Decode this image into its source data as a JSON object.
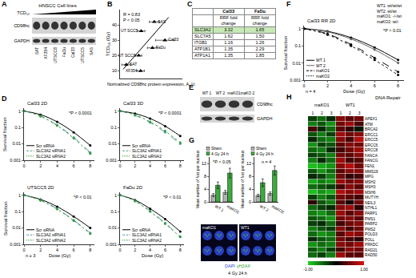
{
  "panel_letters": [
    "A",
    "B",
    "C",
    "D",
    "E",
    "F",
    "G",
    "H"
  ],
  "blot_A": {
    "title": "HNSCC Cell lines",
    "gradient_label": "TCD₅₀",
    "bands": [
      "CD98hc",
      "GAPDH"
    ],
    "lanes": [
      "SAT",
      "XF354",
      "UTSCC8",
      "FaDu",
      "Cal33",
      "UTSCC5",
      "SAS"
    ]
  },
  "table_C": {
    "header": [
      "",
      "Cal33",
      "FaDu"
    ],
    "subheader": [
      "",
      "RRF fold change",
      "RRF fold change"
    ],
    "rows": [
      [
        "SLC3A2",
        "3.32",
        "1.65"
      ],
      [
        "SLC7A5",
        "1.62",
        "1.50"
      ],
      [
        "ITGB1",
        "1.16",
        "1.26"
      ],
      [
        "ATP1B1",
        "1.35",
        "2.29"
      ],
      [
        "ATP1A1",
        "1.35",
        "1.85"
      ]
    ]
  },
  "blot_E": {
    "bands": [
      "CD98hc",
      "GAPDH"
    ],
    "lanes": [
      "WT 1",
      "WT 2",
      "maKO1",
      "maKO 2"
    ]
  },
  "image_G": {
    "panels": [
      "maKO1",
      "WT1"
    ],
    "caption": [
      "DAPI",
      "γH2AX"
    ],
    "subcaption": "4 Gy 24 h"
  },
  "chart_data": [
    {
      "type": "scatter",
      "xlabel": "Normalized CD98hc protein expression, A. U.",
      "ylabel": "TCD₅₀ (Gy)",
      "x": [
        0.55,
        0.34,
        0.72,
        0.52,
        0.3,
        0.1,
        0.33
      ],
      "values": [
        42,
        36,
        30,
        25,
        20,
        14,
        10
      ],
      "point_labels": [
        "SAS",
        "UT SCC5",
        "Cal33",
        "FaDu",
        "UT SCC8",
        "SAT",
        "XF354"
      ],
      "x_error": [
        0.08,
        0.06,
        0.15,
        0.08,
        0.05,
        0.07,
        0.06
      ],
      "marker": "triangle",
      "color": "#000000",
      "fit": {
        "x": [
          0.05,
          0.78
        ],
        "values": [
          11,
          45
        ]
      },
      "xlim": [
        0,
        1
      ],
      "ylim": [
        5,
        50
      ],
      "yticks": [
        10,
        20,
        30,
        40
      ],
      "tick_labels": "y",
      "notes": [
        "R = 0.83",
        "P < 0.05"
      ]
    },
    {
      "type": "line",
      "title": "Cal33 2D",
      "ylabel": "Survival fraction",
      "x": [
        0,
        2,
        4,
        6,
        8
      ],
      "series": [
        {
          "name": "Scr siRNA",
          "color": "#000000",
          "line_style": "solid",
          "marker": "circle",
          "values": [
            1,
            0.6,
            0.22,
            0.05,
            0.008
          ]
        },
        {
          "name": "SLC3A2 siRNA1",
          "color": "#5b9e9e",
          "line_style": "dash",
          "marker": "circle",
          "values": [
            1,
            0.5,
            0.14,
            0.025,
            0.003
          ]
        },
        {
          "name": "SLC3A2 siRNA2",
          "color": "#2e9a3a",
          "line_style": "dot",
          "marker": "circle",
          "values": [
            1,
            0.48,
            0.13,
            0.022,
            0.0025
          ]
        }
      ],
      "log": "y",
      "xlim": [
        0,
        8.5
      ],
      "xticks": [
        0,
        2,
        4,
        6,
        8
      ],
      "ylim": [
        0.001,
        1.5
      ],
      "yticks": [
        0.001,
        0.01,
        0.1,
        1
      ],
      "legend": "lower left",
      "notes": [
        "*P < 0.0001"
      ]
    },
    {
      "type": "line",
      "title": "Cal33 3D",
      "x": [
        0,
        2,
        4,
        6,
        8
      ],
      "series": [
        {
          "name": "Scr siRNA",
          "color": "#000000",
          "line_style": "solid",
          "marker": "circle",
          "values": [
            1,
            0.7,
            0.35,
            0.12,
            0.03
          ]
        },
        {
          "name": "SLC3A2 siRNA1",
          "color": "#5b9e9e",
          "line_style": "dash",
          "marker": "circle",
          "values": [
            1,
            0.55,
            0.2,
            0.05,
            0.01
          ]
        },
        {
          "name": "SLC3A2 siRNA2",
          "color": "#2e9a3a",
          "line_style": "dot",
          "marker": "circle",
          "values": [
            1,
            0.58,
            0.22,
            0.06,
            0.012
          ]
        }
      ],
      "log": "y",
      "xlim": [
        0,
        8.5
      ],
      "xticks": [
        0,
        2,
        4,
        6,
        8
      ],
      "ylim": [
        0.001,
        1.5
      ],
      "yticks": [
        0.001,
        0.01,
        0.1,
        1
      ],
      "legend": "lower left",
      "notes": [
        "*P < 0.0001"
      ]
    },
    {
      "type": "line",
      "title": "UTSCC5 2D",
      "xlabel": "Dose (Gy)",
      "ylabel": "Survival fraction",
      "x": [
        0,
        2,
        4,
        6,
        8
      ],
      "series": [
        {
          "name": "Scr siRNA",
          "color": "#000000",
          "line_style": "solid",
          "marker": "circle",
          "values": [
            1,
            0.55,
            0.2,
            0.05,
            0.01
          ]
        },
        {
          "name": "SLC3A2 siRNA1",
          "color": "#5b9e9e",
          "line_style": "dash",
          "marker": "circle",
          "values": [
            1,
            0.5,
            0.15,
            0.03,
            0.005
          ]
        },
        {
          "name": "SLC3A2 siRNA2",
          "color": "#2e9a3a",
          "line_style": "dot",
          "marker": "circle",
          "values": [
            1,
            0.48,
            0.14,
            0.028,
            0.0045
          ]
        }
      ],
      "log": "y",
      "xlim": [
        0,
        8.5
      ],
      "xticks": [
        0,
        2,
        4,
        6,
        8
      ],
      "ylim": [
        0.001,
        1.5
      ],
      "yticks": [
        0.001,
        0.01,
        0.1,
        1
      ],
      "legend": "lower left",
      "notes": [
        "*P < 0.01"
      ],
      "sample_size": "n ≥ 3"
    },
    {
      "type": "line",
      "title": "FaDu 2D",
      "xlabel": "Dose (Gy)",
      "x": [
        0,
        2,
        4,
        6,
        8
      ],
      "series": [
        {
          "name": "Scr siRNA",
          "color": "#000000",
          "line_style": "solid",
          "marker": "circle",
          "values": [
            1,
            0.5,
            0.15,
            0.035,
            0.006
          ]
        },
        {
          "name": "SLC3A2 siRNA1",
          "color": "#5b9e9e",
          "line_style": "dash",
          "marker": "circle",
          "values": [
            1,
            0.45,
            0.11,
            0.02,
            0.003
          ]
        },
        {
          "name": "SLC3A2 siRNA2",
          "color": "#2e9a3a",
          "line_style": "dot",
          "marker": "circle",
          "values": [
            1,
            0.44,
            0.1,
            0.018,
            0.0028
          ]
        }
      ],
      "log": "y",
      "xlim": [
        0,
        8.5
      ],
      "xticks": [
        0,
        2,
        4,
        6,
        8
      ],
      "ylim": [
        0.001,
        1.5
      ],
      "yticks": [
        0.001,
        0.01,
        0.1,
        1
      ],
      "legend": "lower left",
      "notes": [
        "*P < 0.01"
      ]
    },
    {
      "type": "line",
      "title": "Cal33 RR 2D",
      "xlabel": "Dose (Gy)",
      "ylabel": "Survival fraction",
      "x": [
        0,
        2,
        4,
        6,
        8
      ],
      "series": [
        {
          "name": "WT 1",
          "color": "#000000",
          "line_style": "solid",
          "marker": "circle",
          "values": [
            1,
            0.7,
            0.3,
            0.08,
            0.015
          ]
        },
        {
          "name": "WT 2",
          "color": "#666666",
          "line_style": "solid",
          "marker": "circle",
          "values": [
            1,
            0.65,
            0.25,
            0.06,
            0.01
          ]
        },
        {
          "name": "maKO1",
          "color": "#000000",
          "line_style": "dash",
          "marker": "circle",
          "values": [
            1,
            0.5,
            0.12,
            0.02,
            0.003
          ]
        },
        {
          "name": "maKO2",
          "color": "#000000",
          "line_style": "dot",
          "marker": "circle",
          "values": [
            1,
            0.45,
            0.1,
            0.015,
            0.002
          ]
        }
      ],
      "log": "y",
      "xlim": [
        0,
        8.5
      ],
      "xticks": [
        0,
        2,
        4,
        6,
        8
      ],
      "ylim": [
        0.001,
        1.5
      ],
      "yticks": [
        0.001,
        0.01,
        0.1,
        1
      ],
      "legend": "lower left",
      "notes": [
        "*P < 0.01"
      ],
      "sample_size": "n = 4",
      "genotypes": [
        "WT1: wt/wt/wt",
        "WT2: wt/wt",
        "maKO1: -/-/wt",
        "maKO2: wt/-"
      ]
    },
    {
      "type": "bar",
      "ylabel": "Mean number of foci per nucleus",
      "categories": [
        "WT 1",
        "maKO1"
      ],
      "series": [
        {
          "name": "Sham",
          "color": "#b3b3b3",
          "values": [
            2.1,
            3.0
          ],
          "errors": [
            0.5,
            0.6
          ]
        },
        {
          "name": "4 Gy 24 h",
          "color": "#3daa3d",
          "values": [
            5.2,
            9.0
          ],
          "errors": [
            1.0,
            1.5
          ]
        }
      ],
      "ylim": [
        0,
        14
      ],
      "yticks": [
        0,
        4,
        8,
        12
      ],
      "legend": "above",
      "notes": [
        "*P < 0.05"
      ]
    },
    {
      "type": "bar",
      "ylabel": "Mean number of foci per nucleus",
      "categories": [
        "WT 2",
        "maKO2"
      ],
      "series": [
        {
          "name": "Sham",
          "color": "#b3b3b3",
          "values": [
            2.0,
            2.6
          ],
          "errors": [
            0.4,
            0.5
          ]
        },
        {
          "name": "4 Gy 24 h",
          "color": "#3daa3d",
          "values": [
            6.0,
            9.8
          ],
          "errors": [
            1.2,
            1.4
          ]
        }
      ],
      "ylim": [
        0,
        14
      ],
      "yticks": [
        0,
        4,
        8,
        12
      ],
      "legend": "above",
      "sample_size": "n = 4"
    },
    {
      "type": "heatmap",
      "title": "DNA Repair",
      "column_groups": [
        "maKO1",
        "WT1"
      ],
      "columns": [
        "1",
        "2",
        "3",
        "1",
        "2",
        "3"
      ],
      "categories": [
        "APEX1",
        "ATM",
        "BRCA2",
        "ERCC1",
        "ERCC5",
        "ERCC6",
        "ERCC8",
        "FANCA",
        "FANCG",
        "FEN1",
        "MMS19",
        "MPG",
        "MSH2",
        "MSH3",
        "MSH6",
        "MUTYH",
        "NEIL3",
        "NTHL1",
        "PARP1",
        "PMS1",
        "PARP2",
        "PMS2",
        "POLD3",
        "POLL",
        "PRKDC",
        "RAD21",
        "RAD50"
      ],
      "cells": [
        [
          -0.3,
          -0.5,
          -0.2,
          0.6,
          0.4,
          0.5
        ],
        [
          -0.6,
          -0.4,
          -0.7,
          0.5,
          0.7,
          0.3
        ],
        [
          0.3,
          -0.2,
          -0.5,
          0.4,
          0.2,
          -0.1
        ],
        [
          -0.4,
          -0.6,
          -0.3,
          0.7,
          0.5,
          0.6
        ],
        [
          -0.2,
          -0.5,
          -0.6,
          0.6,
          0.3,
          0.8
        ],
        [
          -0.7,
          -0.3,
          -0.4,
          0.4,
          0.6,
          0.5
        ],
        [
          -0.5,
          -0.6,
          -0.2,
          0.3,
          0.5,
          0.7
        ],
        [
          -0.3,
          -0.4,
          -0.6,
          0.5,
          0.4,
          0.6
        ],
        [
          -0.6,
          -0.2,
          -0.5,
          0.7,
          0.3,
          0.4
        ],
        [
          -0.9,
          -0.8,
          -0.7,
          0.6,
          0.8,
          0.5
        ],
        [
          -0.4,
          -0.7,
          -0.5,
          0.4,
          0.6,
          0.6
        ],
        [
          -0.2,
          -0.3,
          -0.6,
          0.5,
          0.2,
          0.3
        ],
        [
          -0.8,
          -0.6,
          -0.7,
          0.7,
          0.5,
          0.6
        ],
        [
          -0.5,
          -0.4,
          -0.3,
          0.3,
          0.6,
          0.4
        ],
        [
          -0.9,
          -0.7,
          -0.8,
          0.8,
          0.6,
          0.7
        ],
        [
          -0.3,
          -0.6,
          -0.4,
          0.5,
          0.4,
          0.3
        ],
        [
          0.2,
          -0.4,
          -0.6,
          0.4,
          0.1,
          0.5
        ],
        [
          -0.5,
          -0.3,
          -0.2,
          0.6,
          0.7,
          0.2
        ],
        [
          -0.6,
          -0.7,
          -0.5,
          0.7,
          0.4,
          0.6
        ],
        [
          -0.4,
          -0.5,
          -0.7,
          0.5,
          0.6,
          0.4
        ],
        [
          -0.3,
          -0.2,
          -0.5,
          0.3,
          0.5,
          0.6
        ],
        [
          -0.6,
          -0.4,
          -0.3,
          0.6,
          0.3,
          0.5
        ],
        [
          -0.5,
          -0.7,
          -0.6,
          0.4,
          0.7,
          0.6
        ],
        [
          -0.2,
          -0.4,
          -0.5,
          0.5,
          0.3,
          0.2
        ],
        [
          -0.7,
          -0.5,
          -0.6,
          0.6,
          0.5,
          0.7
        ],
        [
          -0.4,
          -0.6,
          -0.3,
          0.3,
          0.6,
          0.5
        ],
        [
          -0.5,
          -0.3,
          -0.6,
          0.7,
          0.4,
          0.4
        ]
      ],
      "colorbar_range": [
        -1,
        1
      ],
      "colorbar_ticks": [
        {
          "value": -1,
          "label": "-1.00"
        },
        {
          "value": 1,
          "label": "1.00"
        }
      ]
    }
  ]
}
